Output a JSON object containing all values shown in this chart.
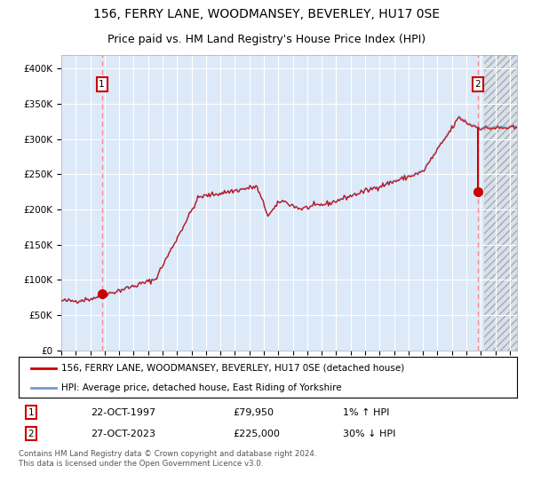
{
  "title1": "156, FERRY LANE, WOODMANSEY, BEVERLEY, HU17 0SE",
  "title2": "Price paid vs. HM Land Registry's House Price Index (HPI)",
  "ylim": [
    0,
    420000
  ],
  "yticks": [
    0,
    50000,
    100000,
    150000,
    200000,
    250000,
    300000,
    350000,
    400000
  ],
  "ytick_labels": [
    "£0",
    "£50K",
    "£100K",
    "£150K",
    "£200K",
    "£250K",
    "£300K",
    "£350K",
    "£400K"
  ],
  "xlim_start": 1995.0,
  "xlim_end": 2026.5,
  "plot_bg": "#dce9f8",
  "grid_color": "#ffffff",
  "hpi_line_color": "#7799cc",
  "price_line_color": "#cc0000",
  "marker_color": "#cc0000",
  "dashed_line_color": "#ff8888",
  "legend_label1": "156, FERRY LANE, WOODMANSEY, BEVERLEY, HU17 0SE (detached house)",
  "legend_label2": "HPI: Average price, detached house, East Riding of Yorkshire",
  "sale1_label": "1",
  "sale1_date": "22-OCT-1997",
  "sale1_price": "£79,950",
  "sale1_hpi": "1% ↑ HPI",
  "sale1_year": 1997.8,
  "sale1_value": 79950,
  "sale2_label": "2",
  "sale2_date": "27-OCT-2023",
  "sale2_price": "£225,000",
  "sale2_hpi": "30% ↓ HPI",
  "sale2_year": 2023.8,
  "sale2_value": 225000,
  "footer": "Contains HM Land Registry data © Crown copyright and database right 2024.\nThis data is licensed under the Open Government Licence v3.0.",
  "hatch_start": 2024.25,
  "title_fontsize": 10,
  "subtitle_fontsize": 9,
  "label_fontsize": 8,
  "sale2_hpi_peak": 321000
}
